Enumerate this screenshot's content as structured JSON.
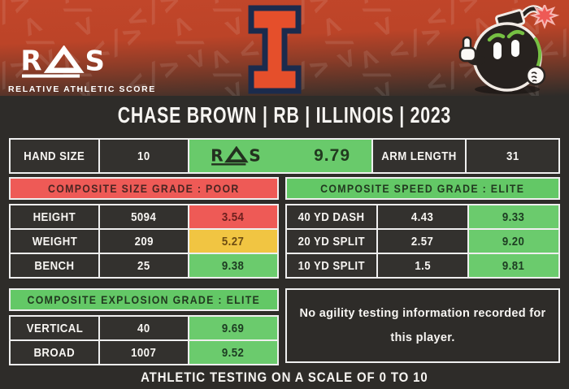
{
  "header": {
    "logo_letters": {
      "r": "R",
      "s": "S"
    },
    "logo_subtitle": "RELATIVE ATHLETIC SCORE",
    "pattern_glyph": "</>",
    "team_logo": "illinois-block-i",
    "mascot": "bomb-mascot"
  },
  "title": "CHASE BROWN | RB | ILLINOIS | 2023",
  "info_row": {
    "hand_size_label": "HAND SIZE",
    "hand_size_value": "10",
    "ras_logo_letters": {
      "r": "R",
      "s": "S"
    },
    "ras_value": "9.79",
    "arm_length_label": "ARM LENGTH",
    "arm_length_value": "31"
  },
  "sections": {
    "size": {
      "header": "COMPOSITE SIZE GRADE : POOR",
      "grade": "POOR",
      "rows": [
        {
          "label": "HEIGHT",
          "value": "5094",
          "score": "3.54",
          "tier": "red"
        },
        {
          "label": "WEIGHT",
          "value": "209",
          "score": "5.27",
          "tier": "yellow"
        },
        {
          "label": "BENCH",
          "value": "25",
          "score": "9.38",
          "tier": "green"
        }
      ]
    },
    "speed": {
      "header": "COMPOSITE SPEED GRADE : ELITE",
      "grade": "ELITE",
      "rows": [
        {
          "label": "40 YD DASH",
          "value": "4.43",
          "score": "9.33",
          "tier": "green"
        },
        {
          "label": "20 YD SPLIT",
          "value": "2.57",
          "score": "9.20",
          "tier": "green"
        },
        {
          "label": "10 YD SPLIT",
          "value": "1.5",
          "score": "9.81",
          "tier": "green"
        }
      ]
    },
    "explosion": {
      "header": "COMPOSITE EXPLOSION GRADE : ELITE",
      "grade": "ELITE",
      "rows": [
        {
          "label": "VERTICAL",
          "value": "40",
          "score": "9.69",
          "tier": "green"
        },
        {
          "label": "BROAD",
          "value": "1007",
          "score": "9.52",
          "tier": "green"
        }
      ]
    },
    "agility_note": "No agility testing information recorded for this player."
  },
  "footer": "ATHLETIC TESTING ON A SCALE OF 0 TO 10",
  "colors": {
    "header_gradient_top": "#c2462a",
    "card_background": "#2e2c29",
    "cell_background": "#33312e",
    "border": "#efefef",
    "green": "#68c96a",
    "red": "#ee5a56",
    "yellow": "#f1c542",
    "illini_orange": "#e54f2b",
    "illini_navy": "#1b2b4d",
    "mascot_green": "#76c043"
  },
  "chart_data": {
    "type": "table",
    "title": "CHASE BROWN | RB | ILLINOIS | 2023",
    "player": {
      "name": "CHASE BROWN",
      "position": "RB",
      "school": "ILLINOIS",
      "year": 2023
    },
    "overall_ras": 9.79,
    "columns": [
      "metric",
      "measurement",
      "score"
    ],
    "rows": [
      [
        "HAND SIZE",
        "10",
        null
      ],
      [
        "ARM LENGTH",
        "31",
        null
      ],
      [
        "HEIGHT",
        "5094",
        3.54
      ],
      [
        "WEIGHT",
        "209",
        5.27
      ],
      [
        "BENCH",
        "25",
        9.38
      ],
      [
        "40 YD DASH",
        "4.43",
        9.33
      ],
      [
        "20 YD SPLIT",
        "2.57",
        9.2
      ],
      [
        "10 YD SPLIT",
        "1.5",
        9.81
      ],
      [
        "VERTICAL",
        "40",
        9.69
      ],
      [
        "BROAD",
        "1007",
        9.52
      ]
    ],
    "composite_grades": {
      "size": "POOR",
      "speed": "ELITE",
      "explosion": "ELITE",
      "agility": null
    },
    "agility_note": "No agility testing information recorded for this player.",
    "scale": [
      0,
      10
    ],
    "scale_note": "ATHLETIC TESTING ON A SCALE OF 0 TO 10"
  }
}
